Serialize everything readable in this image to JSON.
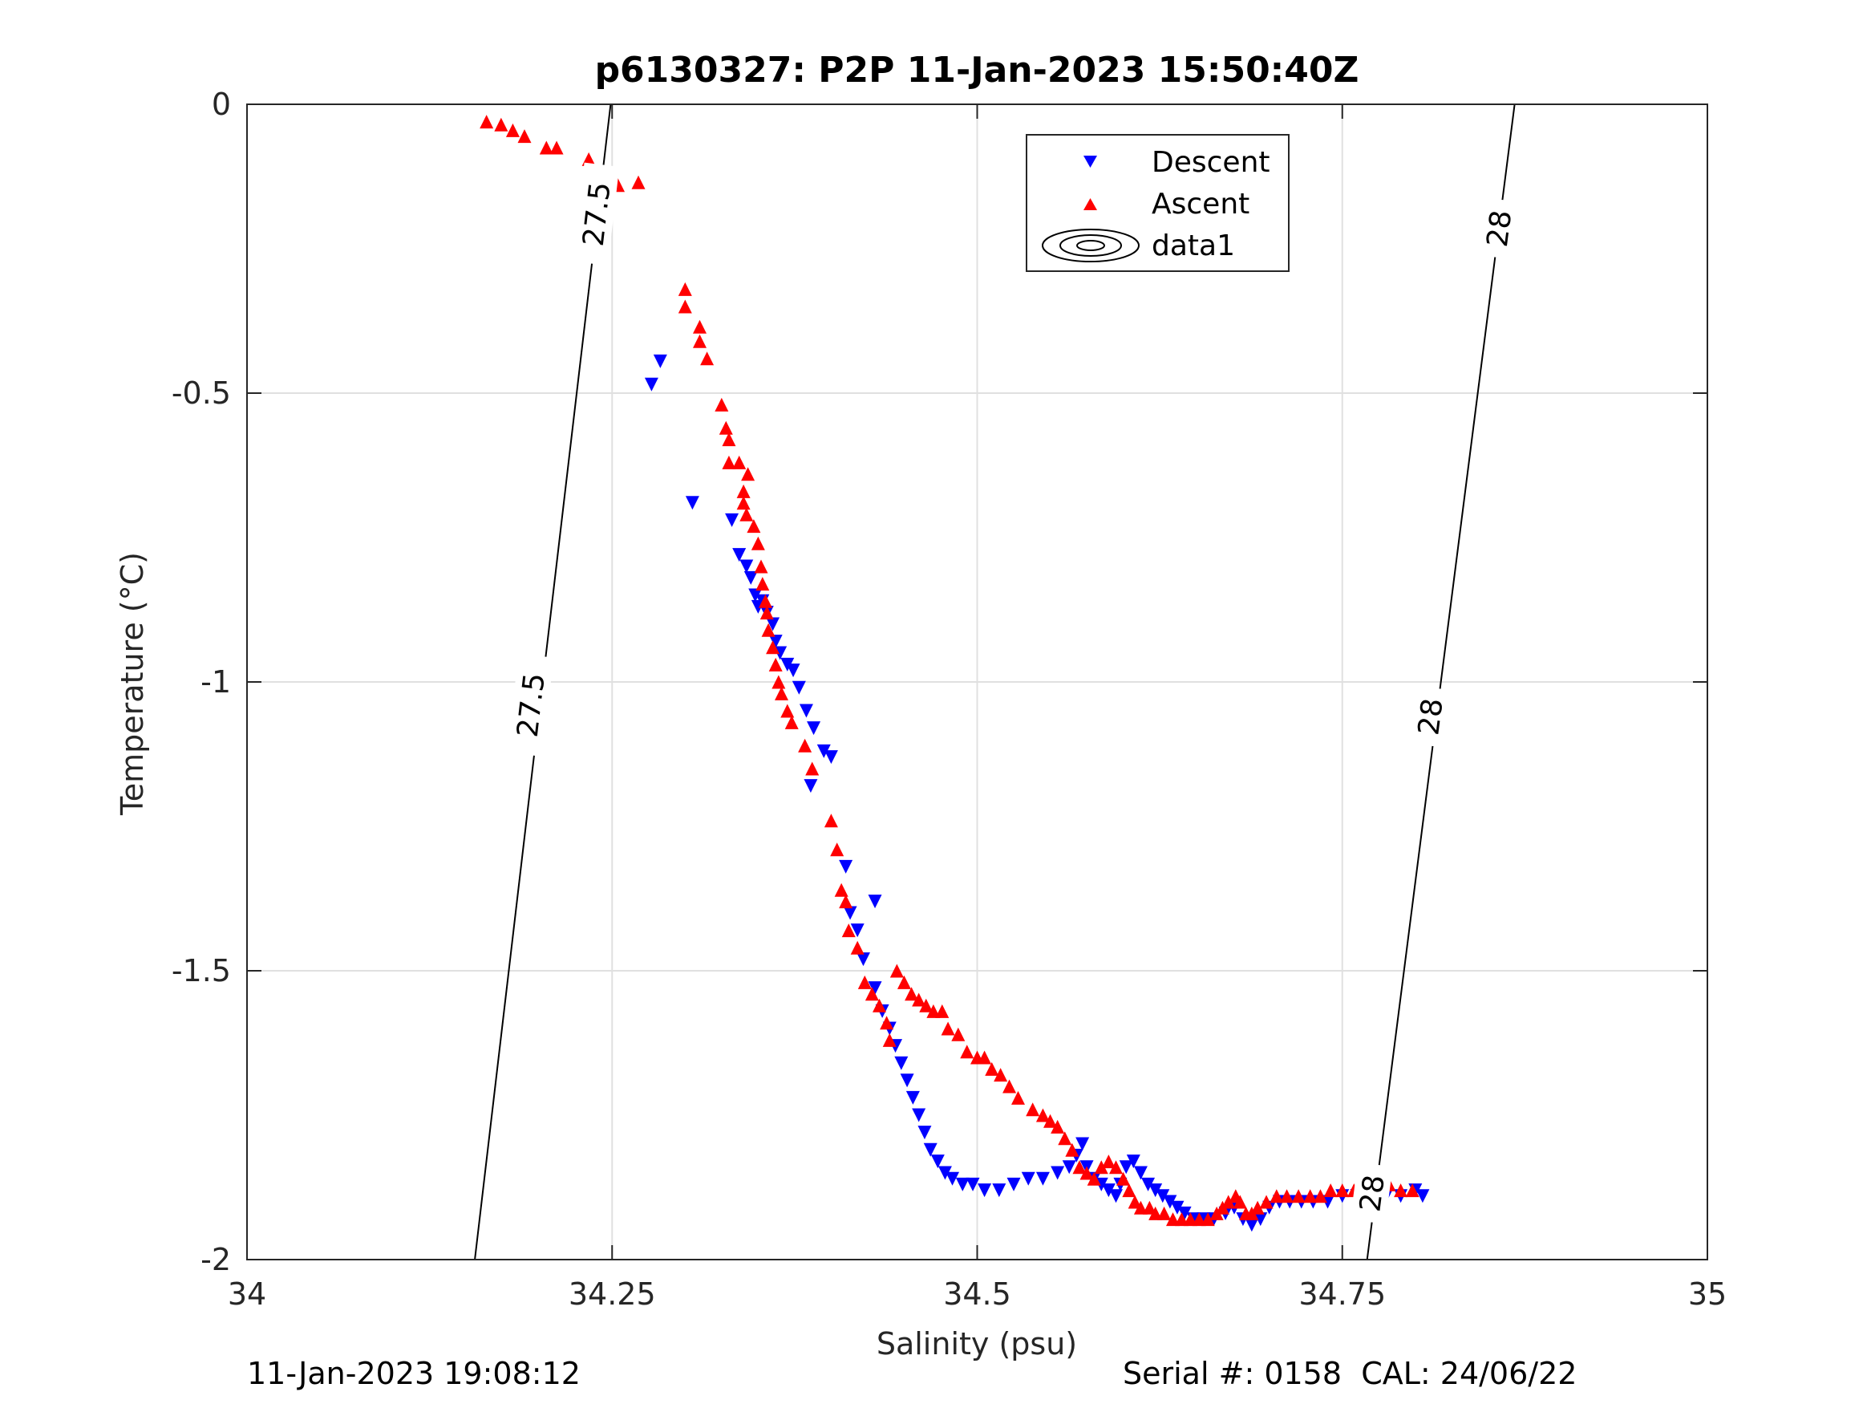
{
  "chart_data": {
    "type": "scatter",
    "title": "p6130327: P2P 11-Jan-2023 15:50:40Z",
    "xlabel": "Salinity (psu)",
    "ylabel": "Temperature (°C)",
    "xlim": [
      34,
      35
    ],
    "ylim": [
      -2,
      0
    ],
    "xticks": [
      34,
      34.25,
      34.5,
      34.75,
      35
    ],
    "xtick_labels": [
      "34",
      "34.25",
      "34.5",
      "34.75",
      "35"
    ],
    "yticks": [
      0,
      -0.5,
      -1,
      -1.5,
      -2
    ],
    "ytick_labels": [
      "0",
      "-0.5",
      "-1",
      "-1.5",
      "-2"
    ],
    "grid": true,
    "legend": {
      "placement": "top-center",
      "entries": [
        "Descent",
        "Ascent",
        "data1"
      ]
    },
    "colors": {
      "descent": "#0000ff",
      "ascent": "#ff0000",
      "contour": "#000000"
    },
    "series": [
      {
        "name": "Descent",
        "marker": "triangle-down",
        "points": [
          [
            34.277,
            -0.485
          ],
          [
            34.283,
            -0.445
          ],
          [
            34.305,
            -0.69
          ],
          [
            34.332,
            -0.72
          ],
          [
            34.337,
            -0.78
          ],
          [
            34.342,
            -0.8
          ],
          [
            34.345,
            -0.82
          ],
          [
            34.348,
            -0.85
          ],
          [
            34.35,
            -0.87
          ],
          [
            34.353,
            -0.86
          ],
          [
            34.356,
            -0.88
          ],
          [
            34.36,
            -0.9
          ],
          [
            34.362,
            -0.93
          ],
          [
            34.365,
            -0.95
          ],
          [
            34.37,
            -0.97
          ],
          [
            34.374,
            -0.98
          ],
          [
            34.378,
            -1.01
          ],
          [
            34.383,
            -1.05
          ],
          [
            34.388,
            -1.08
          ],
          [
            34.395,
            -1.12
          ],
          [
            34.4,
            -1.13
          ],
          [
            34.386,
            -1.18
          ],
          [
            34.41,
            -1.32
          ],
          [
            34.43,
            -1.38
          ],
          [
            34.413,
            -1.4
          ],
          [
            34.418,
            -1.43
          ],
          [
            34.422,
            -1.48
          ],
          [
            34.43,
            -1.53
          ],
          [
            34.435,
            -1.57
          ],
          [
            34.44,
            -1.6
          ],
          [
            34.444,
            -1.63
          ],
          [
            34.448,
            -1.66
          ],
          [
            34.452,
            -1.69
          ],
          [
            34.456,
            -1.72
          ],
          [
            34.46,
            -1.75
          ],
          [
            34.464,
            -1.78
          ],
          [
            34.468,
            -1.81
          ],
          [
            34.473,
            -1.83
          ],
          [
            34.478,
            -1.85
          ],
          [
            34.483,
            -1.86
          ],
          [
            34.49,
            -1.87
          ],
          [
            34.497,
            -1.87
          ],
          [
            34.505,
            -1.88
          ],
          [
            34.515,
            -1.88
          ],
          [
            34.525,
            -1.87
          ],
          [
            34.535,
            -1.86
          ],
          [
            34.545,
            -1.86
          ],
          [
            34.555,
            -1.85
          ],
          [
            34.563,
            -1.84
          ],
          [
            34.568,
            -1.82
          ],
          [
            34.572,
            -1.8
          ],
          [
            34.575,
            -1.84
          ],
          [
            34.58,
            -1.86
          ],
          [
            34.585,
            -1.87
          ],
          [
            34.59,
            -1.88
          ],
          [
            34.595,
            -1.89
          ],
          [
            34.598,
            -1.87
          ],
          [
            34.602,
            -1.84
          ],
          [
            34.607,
            -1.83
          ],
          [
            34.612,
            -1.85
          ],
          [
            34.617,
            -1.87
          ],
          [
            34.622,
            -1.88
          ],
          [
            34.627,
            -1.89
          ],
          [
            34.632,
            -1.9
          ],
          [
            34.637,
            -1.91
          ],
          [
            34.642,
            -1.92
          ],
          [
            34.648,
            -1.93
          ],
          [
            34.655,
            -1.93
          ],
          [
            34.662,
            -1.93
          ],
          [
            34.67,
            -1.92
          ],
          [
            34.676,
            -1.91
          ],
          [
            34.682,
            -1.93
          ],
          [
            34.688,
            -1.94
          ],
          [
            34.694,
            -1.93
          ],
          [
            34.7,
            -1.91
          ],
          [
            34.707,
            -1.9
          ],
          [
            34.714,
            -1.9
          ],
          [
            34.722,
            -1.9
          ],
          [
            34.73,
            -1.9
          ],
          [
            34.74,
            -1.9
          ],
          [
            34.75,
            -1.89
          ],
          [
            34.76,
            -1.89
          ],
          [
            34.77,
            -1.89
          ],
          [
            34.78,
            -1.89
          ],
          [
            34.79,
            -1.89
          ],
          [
            34.8,
            -1.88
          ],
          [
            34.805,
            -1.89
          ]
        ]
      },
      {
        "name": "Ascent",
        "marker": "triangle-up",
        "points": [
          [
            34.164,
            -0.03
          ],
          [
            34.174,
            -0.035
          ],
          [
            34.182,
            -0.045
          ],
          [
            34.19,
            -0.055
          ],
          [
            34.205,
            -0.075
          ],
          [
            34.212,
            -0.075
          ],
          [
            34.234,
            -0.095
          ],
          [
            34.25,
            -0.12
          ],
          [
            34.254,
            -0.14
          ],
          [
            34.268,
            -0.135
          ],
          [
            34.3,
            -0.32
          ],
          [
            34.3,
            -0.35
          ],
          [
            34.31,
            -0.385
          ],
          [
            34.31,
            -0.41
          ],
          [
            34.315,
            -0.44
          ],
          [
            34.325,
            -0.52
          ],
          [
            34.328,
            -0.56
          ],
          [
            34.33,
            -0.58
          ],
          [
            34.33,
            -0.62
          ],
          [
            34.337,
            -0.62
          ],
          [
            34.343,
            -0.64
          ],
          [
            34.34,
            -0.67
          ],
          [
            34.34,
            -0.69
          ],
          [
            34.342,
            -0.71
          ],
          [
            34.347,
            -0.73
          ],
          [
            34.35,
            -0.76
          ],
          [
            34.352,
            -0.8
          ],
          [
            34.353,
            -0.83
          ],
          [
            34.355,
            -0.86
          ],
          [
            34.356,
            -0.88
          ],
          [
            34.357,
            -0.91
          ],
          [
            34.36,
            -0.94
          ],
          [
            34.362,
            -0.97
          ],
          [
            34.364,
            -1.0
          ],
          [
            34.366,
            -1.02
          ],
          [
            34.37,
            -1.05
          ],
          [
            34.373,
            -1.07
          ],
          [
            34.382,
            -1.11
          ],
          [
            34.387,
            -1.15
          ],
          [
            34.4,
            -1.24
          ],
          [
            34.404,
            -1.29
          ],
          [
            34.407,
            -1.36
          ],
          [
            34.41,
            -1.38
          ],
          [
            34.412,
            -1.43
          ],
          [
            34.418,
            -1.46
          ],
          [
            34.423,
            -1.52
          ],
          [
            34.428,
            -1.54
          ],
          [
            34.433,
            -1.56
          ],
          [
            34.438,
            -1.59
          ],
          [
            34.44,
            -1.62
          ],
          [
            34.445,
            -1.5
          ],
          [
            34.45,
            -1.52
          ],
          [
            34.455,
            -1.54
          ],
          [
            34.46,
            -1.55
          ],
          [
            34.465,
            -1.56
          ],
          [
            34.47,
            -1.57
          ],
          [
            34.476,
            -1.57
          ],
          [
            34.48,
            -1.6
          ],
          [
            34.487,
            -1.61
          ],
          [
            34.493,
            -1.64
          ],
          [
            34.5,
            -1.65
          ],
          [
            34.505,
            -1.65
          ],
          [
            34.51,
            -1.67
          ],
          [
            34.516,
            -1.68
          ],
          [
            34.522,
            -1.7
          ],
          [
            34.528,
            -1.72
          ],
          [
            34.538,
            -1.74
          ],
          [
            34.545,
            -1.75
          ],
          [
            34.55,
            -1.76
          ],
          [
            34.555,
            -1.77
          ],
          [
            34.56,
            -1.79
          ],
          [
            34.565,
            -1.81
          ],
          [
            34.57,
            -1.84
          ],
          [
            34.575,
            -1.85
          ],
          [
            34.58,
            -1.86
          ],
          [
            34.585,
            -1.84
          ],
          [
            34.59,
            -1.83
          ],
          [
            34.595,
            -1.84
          ],
          [
            34.6,
            -1.86
          ],
          [
            34.604,
            -1.88
          ],
          [
            34.608,
            -1.9
          ],
          [
            34.612,
            -1.91
          ],
          [
            34.618,
            -1.91
          ],
          [
            34.622,
            -1.92
          ],
          [
            34.628,
            -1.92
          ],
          [
            34.634,
            -1.93
          ],
          [
            34.64,
            -1.93
          ],
          [
            34.646,
            -1.93
          ],
          [
            34.652,
            -1.93
          ],
          [
            34.658,
            -1.93
          ],
          [
            34.664,
            -1.92
          ],
          [
            34.668,
            -1.91
          ],
          [
            34.672,
            -1.9
          ],
          [
            34.677,
            -1.89
          ],
          [
            34.68,
            -1.9
          ],
          [
            34.684,
            -1.92
          ],
          [
            34.688,
            -1.92
          ],
          [
            34.692,
            -1.91
          ],
          [
            34.698,
            -1.9
          ],
          [
            34.705,
            -1.89
          ],
          [
            34.712,
            -1.89
          ],
          [
            34.72,
            -1.89
          ],
          [
            34.728,
            -1.89
          ],
          [
            34.735,
            -1.89
          ],
          [
            34.742,
            -1.88
          ],
          [
            34.75,
            -1.88
          ],
          [
            34.758,
            -1.88
          ],
          [
            34.766,
            -1.88
          ],
          [
            34.774,
            -1.87
          ],
          [
            34.782,
            -1.87
          ],
          [
            34.79,
            -1.88
          ],
          [
            34.798,
            -1.88
          ]
        ]
      }
    ],
    "contours": [
      {
        "level": "27.5",
        "line": [
          [
            34.249,
            0
          ],
          [
            34.156,
            -2
          ]
        ],
        "labels": [
          {
            "text": "27.5",
            "x": 34.239,
            "y": -0.19
          },
          {
            "text": "27.5",
            "x": 34.194,
            "y": -1.04
          }
        ]
      },
      {
        "level": "28",
        "line": [
          [
            34.868,
            0
          ],
          [
            34.767,
            -2
          ]
        ],
        "labels": [
          {
            "text": "28",
            "x": 34.857,
            "y": -0.215
          },
          {
            "text": "28",
            "x": 34.81,
            "y": -1.06
          },
          {
            "text": "28",
            "x": 34.77,
            "y": -1.885
          }
        ]
      }
    ]
  },
  "footer": {
    "left": "11-Jan-2023 19:08:12",
    "right": "Serial #: 0158  CAL: 24/06/22"
  }
}
